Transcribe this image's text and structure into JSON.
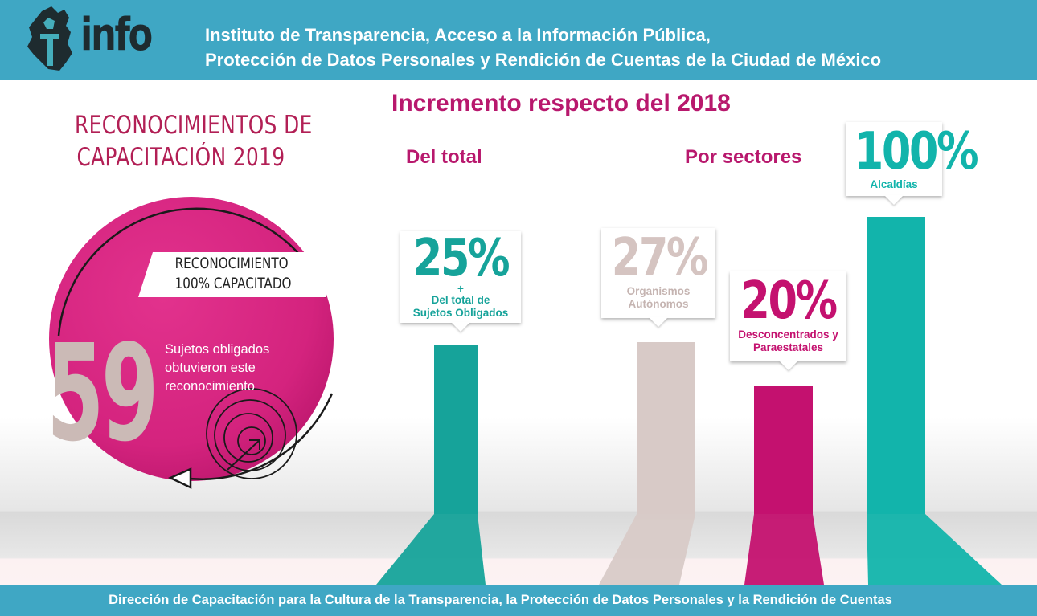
{
  "header": {
    "logo_text": "info",
    "institution_line1": "Instituto de Transparencia, Acceso a la Información Pública,",
    "institution_line2": "Protección de Datos Personales y Rendición de Cuentas de la Ciudad de México",
    "bar_color": "#3fa7c4"
  },
  "left_panel": {
    "title_line1": "RECONOCIMIENTOS DE",
    "title_line2": "CAPACITACIÓN 2019",
    "badge_line1": "RECONOCIMIENTO",
    "badge_line2": "100% CAPACITADO",
    "count": "59",
    "description": "Sujetos obligados obtuvieron este reconocimiento",
    "circle_color": "#d4237e"
  },
  "chart_data": {
    "type": "bar",
    "title": "Incremento respecto del 2018",
    "groups": [
      {
        "label": "Del total",
        "bars": [
          {
            "value": 25,
            "value_label": "25%",
            "prefix": "+",
            "caption": [
              "Del total de",
              "Sujetos Obligados"
            ],
            "color": "#16a39a"
          }
        ]
      },
      {
        "label": "Por sectores",
        "bars": [
          {
            "value": 27,
            "value_label": "27%",
            "caption": [
              "Organismos",
              "Autónomos"
            ],
            "color": "#d8cac7"
          },
          {
            "value": 20,
            "value_label": "20%",
            "caption": [
              "Desconcentrados y",
              "Paraestatales"
            ],
            "color": "#c4116f"
          },
          {
            "value": 100,
            "value_label": "100%",
            "caption": [
              "Alcaldías"
            ],
            "color": "#12b4ab"
          }
        ]
      }
    ]
  },
  "footer": {
    "text": "Dirección de Capacitación para la Cultura de la Transparencia, la Protección de Datos Personales y la Rendición de Cuentas"
  }
}
